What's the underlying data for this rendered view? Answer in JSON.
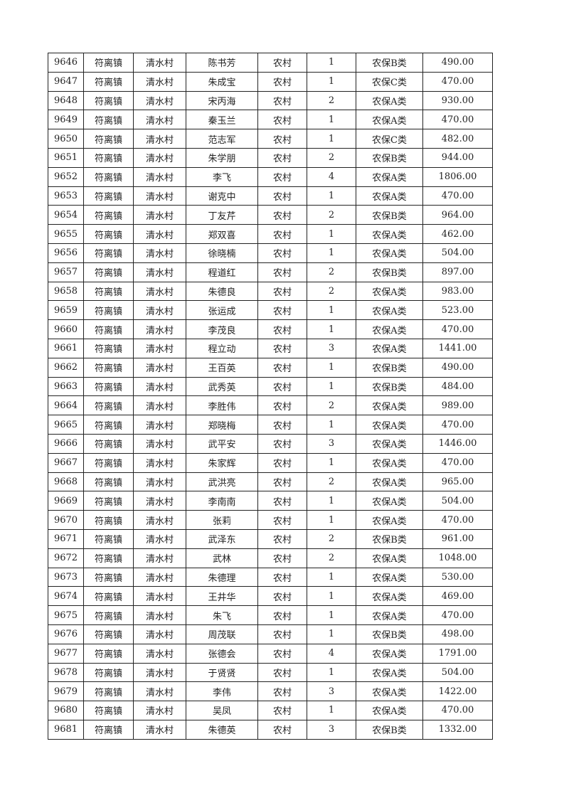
{
  "table": {
    "rows": [
      [
        "9646",
        "符离镇",
        "清水村",
        "陈书芳",
        "农村",
        "1",
        "农保B类",
        "490.00"
      ],
      [
        "9647",
        "符离镇",
        "清水村",
        "朱成宝",
        "农村",
        "1",
        "农保C类",
        "470.00"
      ],
      [
        "9648",
        "符离镇",
        "清水村",
        "宋丙海",
        "农村",
        "2",
        "农保A类",
        "930.00"
      ],
      [
        "9649",
        "符离镇",
        "清水村",
        "秦玉兰",
        "农村",
        "1",
        "农保A类",
        "470.00"
      ],
      [
        "9650",
        "符离镇",
        "清水村",
        "范志军",
        "农村",
        "1",
        "农保C类",
        "482.00"
      ],
      [
        "9651",
        "符离镇",
        "清水村",
        "朱学朋",
        "农村",
        "2",
        "农保B类",
        "944.00"
      ],
      [
        "9652",
        "符离镇",
        "清水村",
        "李飞",
        "农村",
        "4",
        "农保A类",
        "1806.00"
      ],
      [
        "9653",
        "符离镇",
        "清水村",
        "谢克中",
        "农村",
        "1",
        "农保A类",
        "470.00"
      ],
      [
        "9654",
        "符离镇",
        "清水村",
        "丁友芹",
        "农村",
        "2",
        "农保B类",
        "964.00"
      ],
      [
        "9655",
        "符离镇",
        "清水村",
        "郑双喜",
        "农村",
        "1",
        "农保A类",
        "462.00"
      ],
      [
        "9656",
        "符离镇",
        "清水村",
        "徐晓楠",
        "农村",
        "1",
        "农保A类",
        "504.00"
      ],
      [
        "9657",
        "符离镇",
        "清水村",
        "程道红",
        "农村",
        "2",
        "农保B类",
        "897.00"
      ],
      [
        "9658",
        "符离镇",
        "清水村",
        "朱德良",
        "农村",
        "2",
        "农保A类",
        "983.00"
      ],
      [
        "9659",
        "符离镇",
        "清水村",
        "张运成",
        "农村",
        "1",
        "农保A类",
        "523.00"
      ],
      [
        "9660",
        "符离镇",
        "清水村",
        "李茂良",
        "农村",
        "1",
        "农保A类",
        "470.00"
      ],
      [
        "9661",
        "符离镇",
        "清水村",
        "程立动",
        "农村",
        "3",
        "农保A类",
        "1441.00"
      ],
      [
        "9662",
        "符离镇",
        "清水村",
        "王百英",
        "农村",
        "1",
        "农保B类",
        "490.00"
      ],
      [
        "9663",
        "符离镇",
        "清水村",
        "武秀英",
        "农村",
        "1",
        "农保B类",
        "484.00"
      ],
      [
        "9664",
        "符离镇",
        "清水村",
        "李胜伟",
        "农村",
        "2",
        "农保A类",
        "989.00"
      ],
      [
        "9665",
        "符离镇",
        "清水村",
        "郑晓梅",
        "农村",
        "1",
        "农保A类",
        "470.00"
      ],
      [
        "9666",
        "符离镇",
        "清水村",
        "武平安",
        "农村",
        "3",
        "农保A类",
        "1446.00"
      ],
      [
        "9667",
        "符离镇",
        "清水村",
        "朱家辉",
        "农村",
        "1",
        "农保A类",
        "470.00"
      ],
      [
        "9668",
        "符离镇",
        "清水村",
        "武洪亮",
        "农村",
        "2",
        "农保A类",
        "965.00"
      ],
      [
        "9669",
        "符离镇",
        "清水村",
        "李南南",
        "农村",
        "1",
        "农保A类",
        "504.00"
      ],
      [
        "9670",
        "符离镇",
        "清水村",
        "张莉",
        "农村",
        "1",
        "农保A类",
        "470.00"
      ],
      [
        "9671",
        "符离镇",
        "清水村",
        "武泽东",
        "农村",
        "2",
        "农保B类",
        "961.00"
      ],
      [
        "9672",
        "符离镇",
        "清水村",
        "武林",
        "农村",
        "2",
        "农保A类",
        "1048.00"
      ],
      [
        "9673",
        "符离镇",
        "清水村",
        "朱德理",
        "农村",
        "1",
        "农保A类",
        "530.00"
      ],
      [
        "9674",
        "符离镇",
        "清水村",
        "王井华",
        "农村",
        "1",
        "农保A类",
        "469.00"
      ],
      [
        "9675",
        "符离镇",
        "清水村",
        "朱飞",
        "农村",
        "1",
        "农保A类",
        "470.00"
      ],
      [
        "9676",
        "符离镇",
        "清水村",
        "周茂联",
        "农村",
        "1",
        "农保B类",
        "498.00"
      ],
      [
        "9677",
        "符离镇",
        "清水村",
        "张德会",
        "农村",
        "4",
        "农保A类",
        "1791.00"
      ],
      [
        "9678",
        "符离镇",
        "清水村",
        "于贤贤",
        "农村",
        "1",
        "农保A类",
        "504.00"
      ],
      [
        "9679",
        "符离镇",
        "清水村",
        "李伟",
        "农村",
        "3",
        "农保A类",
        "1422.00"
      ],
      [
        "9680",
        "符离镇",
        "清水村",
        "吴凤",
        "农村",
        "1",
        "农保A类",
        "470.00"
      ],
      [
        "9681",
        "符离镇",
        "清水村",
        "朱德英",
        "农村",
        "3",
        "农保B类",
        "1332.00"
      ]
    ]
  }
}
